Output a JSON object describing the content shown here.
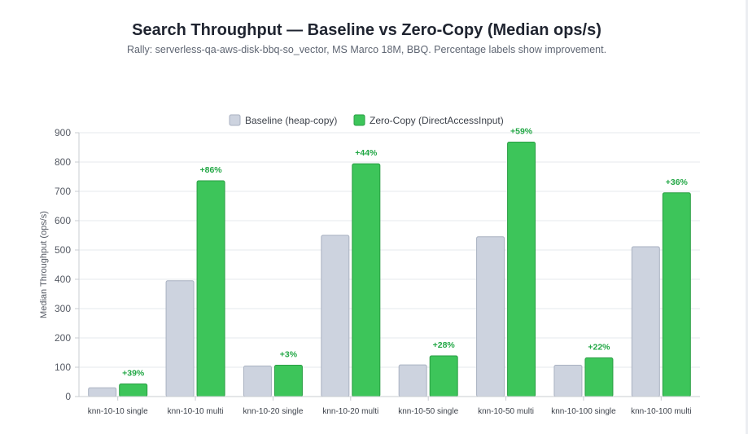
{
  "header": {
    "title": "Search Throughput — Baseline vs Zero-Copy (Median ops/s)",
    "subtitle": "Rally: serverless-qa-aws-disk-bbq-so_vector, MS Marco 18M, BBQ. Percentage labels show improvement."
  },
  "chart_data": {
    "type": "bar",
    "title": "Search Throughput — Baseline vs Zero-Copy (Median ops/s)",
    "subtitle": "Rally: serverless-qa-aws-disk-bbq-so_vector, MS Marco 18M, BBQ. Percentage labels show improvement.",
    "xlabel": "",
    "ylabel": "Median Throughput (ops/s)",
    "ylim": [
      0,
      900
    ],
    "yticks": [
      "0",
      "100",
      "200",
      "300",
      "400",
      "500",
      "600",
      "700",
      "800",
      "900"
    ],
    "grid": true,
    "legend_position": "top",
    "categories": [
      "knn-10-10 single",
      "knn-10-10 multi",
      "knn-10-20 single",
      "knn-10-20 multi",
      "knn-10-50 single",
      "knn-10-50 multi",
      "knn-10-100 single",
      "knn-10-100 multi"
    ],
    "series": [
      {
        "name": "Baseline (heap-copy)",
        "color": "#cdd3df",
        "values": [
          30,
          395,
          104,
          550,
          108,
          545,
          107,
          511
        ]
      },
      {
        "name": "Zero-Copy (DirectAccessInput)",
        "color": "#3dc55a",
        "values": [
          43,
          736,
          107,
          794,
          139,
          868,
          132,
          695
        ]
      }
    ],
    "annotations": [
      "+39%",
      "+86%",
      "+3%",
      "+44%",
      "+28%",
      "+59%",
      "+22%",
      "+36%"
    ],
    "annotation_color": "#22a745"
  }
}
